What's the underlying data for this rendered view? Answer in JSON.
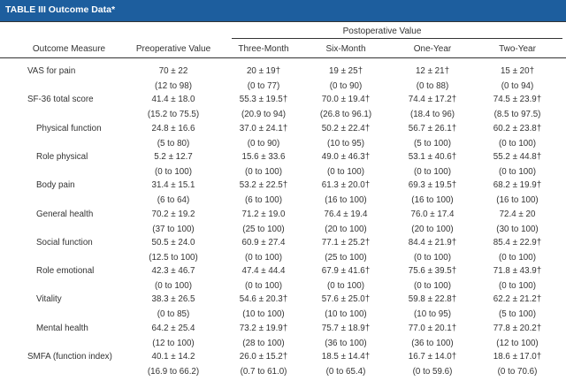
{
  "table": {
    "title": "TABLE III Outcome Data*",
    "group_header": "Postoperative Value",
    "columns": [
      "Outcome Measure",
      "Preoperative Value",
      "Three-Month",
      "Six-Month",
      "One-Year",
      "Two-Year"
    ],
    "rows": [
      {
        "label": "VAS for pain",
        "indent": false,
        "line1": [
          "70 ± 22",
          "20 ± 19†",
          "19 ± 25†",
          "12 ± 21†",
          "15 ± 20†"
        ],
        "line2": [
          "(12 to 98)",
          "(0 to 77)",
          "(0 to 90)",
          "(0 to 88)",
          "(0 to 94)"
        ]
      },
      {
        "label": "SF-36 total score",
        "indent": false,
        "line1": [
          "41.4 ± 18.0",
          "55.3 ± 19.5†",
          "70.0 ± 19.4†",
          "74.4 ± 17.2†",
          "74.5 ± 23.9†"
        ],
        "line2": [
          "(15.2 to 75.5)",
          "(20.9 to 94)",
          "(26.8 to 96.1)",
          "(18.4 to 96)",
          "(8.5 to 97.5)"
        ]
      },
      {
        "label": "Physical function",
        "indent": true,
        "line1": [
          "24.8 ± 16.6",
          "37.0 ± 24.1†",
          "50.2 ± 22.4†",
          "56.7 ± 26.1†",
          "60.2 ± 23.8†"
        ],
        "line2": [
          "(5 to 80)",
          "(0 to 90)",
          "(10 to 95)",
          "(5 to 100)",
          "(0 to 100)"
        ]
      },
      {
        "label": "Role physical",
        "indent": true,
        "line1": [
          "5.2 ± 12.7",
          "15.6 ± 33.6",
          "49.0 ± 46.3†",
          "53.1 ± 40.6†",
          "55.2 ± 44.8†"
        ],
        "line2": [
          "(0 to 100)",
          "(0 to 100)",
          "(0 to 100)",
          "(0 to 100)",
          "(0 to 100)"
        ]
      },
      {
        "label": "Body pain",
        "indent": true,
        "line1": [
          "31.4 ± 15.1",
          "53.2 ± 22.5†",
          "61.3 ± 20.0†",
          "69.3 ± 19.5†",
          "68.2 ± 19.9†"
        ],
        "line2": [
          "(6 to 64)",
          "(6 to 100)",
          "(16 to 100)",
          "(16 to 100)",
          "(16 to 100)"
        ]
      },
      {
        "label": "General health",
        "indent": true,
        "line1": [
          "70.2 ± 19.2",
          "71.2 ± 19.0",
          "76.4 ± 19.4",
          "76.0 ± 17.4",
          "72.4 ± 20"
        ],
        "line2": [
          "(37 to 100)",
          "(25 to 100)",
          "(20 to 100)",
          "(20 to 100)",
          "(30 to 100)"
        ]
      },
      {
        "label": "Social function",
        "indent": true,
        "line1": [
          "50.5 ± 24.0",
          "60.9 ± 27.4",
          "77.1 ± 25.2†",
          "84.4 ± 21.9†",
          "85.4 ± 22.9†"
        ],
        "line2": [
          "(12.5 to 100)",
          "(0 to 100)",
          "(25 to 100)",
          "(0 to 100)",
          "(0 to 100)"
        ]
      },
      {
        "label": "Role emotional",
        "indent": true,
        "line1": [
          "42.3 ± 46.7",
          "47.4 ± 44.4",
          "67.9 ± 41.6†",
          "75.6 ± 39.5†",
          "71.8 ± 43.9†"
        ],
        "line2": [
          "(0 to 100)",
          "(0 to 100)",
          "(0 to 100)",
          "(0 to 100)",
          "(0 to 100)"
        ]
      },
      {
        "label": "Vitality",
        "indent": true,
        "line1": [
          "38.3 ± 26.5",
          "54.6 ± 20.3†",
          "57.6 ± 25.0†",
          "59.8 ± 22.8†",
          "62.2 ± 21.2†"
        ],
        "line2": [
          "(0 to 85)",
          "(10 to 100)",
          "(10 to 100)",
          "(10 to 95)",
          "(5 to 100)"
        ]
      },
      {
        "label": "Mental health",
        "indent": true,
        "line1": [
          "64.2 ± 25.4",
          "73.2 ± 19.9†",
          "75.7 ± 18.9†",
          "77.0 ± 20.1†",
          "77.8 ± 20.2†"
        ],
        "line2": [
          "(12 to 100)",
          "(28 to 100)",
          "(36 to 100)",
          "(36 to 100)",
          "(12 to 100)"
        ]
      },
      {
        "label": "SMFA (function index)",
        "indent": false,
        "line1": [
          "40.1 ± 14.2",
          "26.0 ± 15.2†",
          "18.5 ± 14.4†",
          "16.7 ± 14.0†",
          "18.6 ± 17.0†"
        ],
        "line2": [
          "(16.9 to 66.2)",
          "(0.7 to 61.0)",
          "(0 to 65.4)",
          "(0 to 59.6)",
          "(0 to 70.6)"
        ]
      }
    ]
  },
  "colors": {
    "title_bar": "#1d5e9e",
    "title_text": "#ffffff",
    "text": "#333333",
    "rule": "#333333"
  }
}
